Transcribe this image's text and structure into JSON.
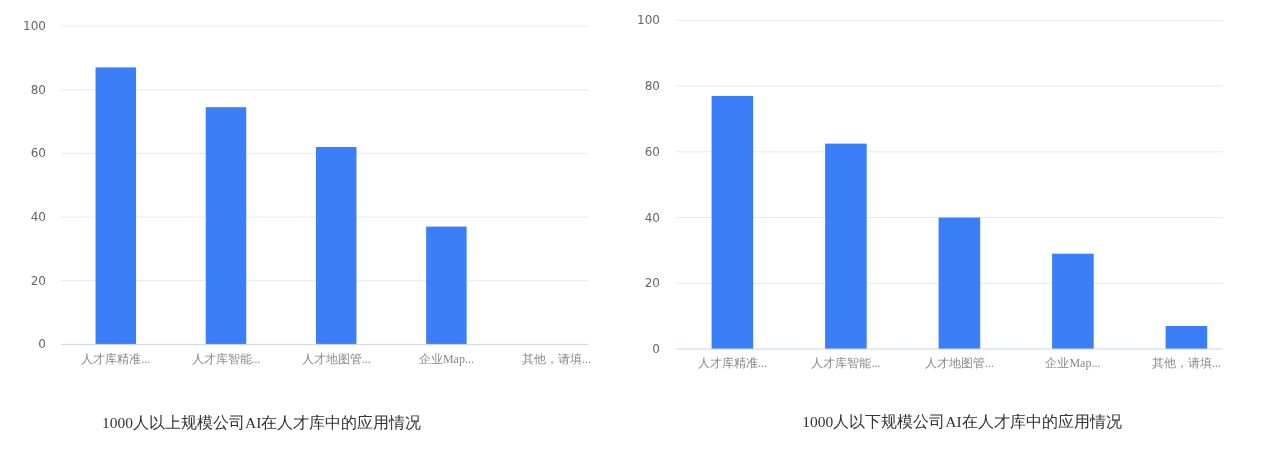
{
  "chart_data": [
    {
      "type": "bar",
      "title": "1000人以上规模公司AI在人才库中的应用情况",
      "categories": [
        "人才库精准...",
        "人才库智能...",
        "人才地图管...",
        "企业Map...",
        "其他，请填..."
      ],
      "values": [
        87,
        74.5,
        62,
        37,
        0
      ],
      "color": "#3a7ef8",
      "ylim": [
        0,
        100
      ],
      "yticks": [
        0,
        20,
        40,
        60,
        80,
        100
      ],
      "grid": "y"
    },
    {
      "type": "bar",
      "title": "1000人以下规模公司AI在人才库中的应用情况",
      "categories": [
        "人才库精准...",
        "人才库智能...",
        "人才地图管...",
        "企业Map...",
        "其他，请填..."
      ],
      "values": [
        77,
        62.5,
        40,
        29,
        7
      ],
      "color": "#3a7ef8",
      "ylim": [
        0,
        100
      ],
      "yticks": [
        0,
        20,
        40,
        60,
        80,
        100
      ],
      "grid": "y"
    }
  ]
}
